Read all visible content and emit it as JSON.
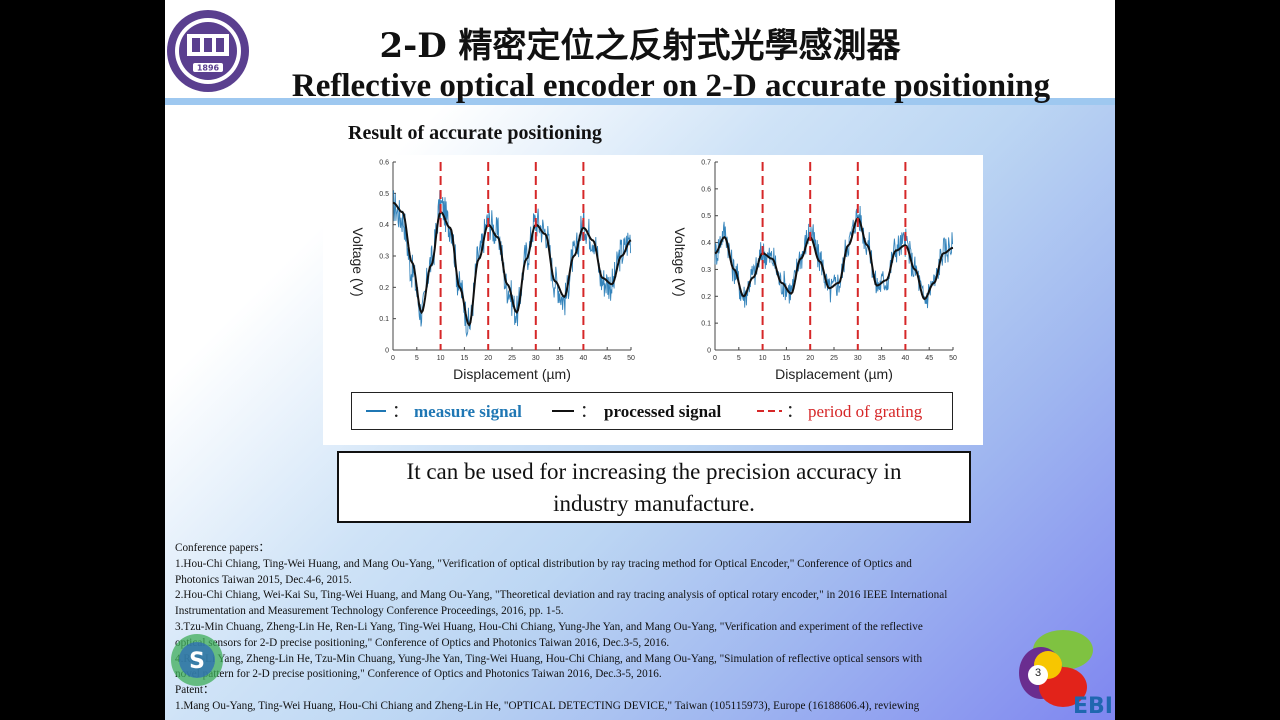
{
  "header": {
    "title_zh": "2-D 精密定位之反射式光學感測器",
    "title_en": "Reflective optical encoder on 2-D accurate positioning",
    "logo_icon": "university-seal-icon",
    "logo_text": "1896"
  },
  "section_title": "Result of accurate positioning",
  "charts": {
    "xlabel": "Displacement (µm)",
    "ylabel": "Voltage (V)"
  },
  "chart_data": [
    {
      "type": "line",
      "xlabel": "Displacement (µm)",
      "ylabel": "Voltage (V)",
      "xlim": [
        0,
        50
      ],
      "ylim": [
        0,
        0.6
      ],
      "xticks": [
        0,
        5,
        10,
        15,
        20,
        25,
        30,
        35,
        40,
        45,
        50
      ],
      "yticks": [
        0,
        0.1,
        0.2,
        0.3,
        0.4,
        0.5,
        0.6
      ],
      "grating_period_lines": [
        10,
        20,
        30,
        40
      ],
      "series": [
        {
          "name": "measure signal",
          "color": "#1f77b4",
          "x": [
            0,
            2,
            4,
            6,
            8,
            10,
            12,
            14,
            16,
            18,
            20,
            22,
            24,
            26,
            28,
            30,
            32,
            34,
            36,
            38,
            40,
            42,
            44,
            46,
            48,
            50
          ],
          "values": [
            0.46,
            0.42,
            0.25,
            0.12,
            0.28,
            0.46,
            0.4,
            0.2,
            0.08,
            0.3,
            0.41,
            0.37,
            0.2,
            0.12,
            0.3,
            0.41,
            0.38,
            0.22,
            0.16,
            0.3,
            0.4,
            0.36,
            0.22,
            0.21,
            0.31,
            0.36
          ]
        },
        {
          "name": "processed signal",
          "color": "#111111",
          "x": [
            0,
            2,
            4,
            6,
            8,
            10,
            12,
            14,
            16,
            18,
            20,
            22,
            24,
            26,
            28,
            30,
            32,
            34,
            36,
            38,
            40,
            42,
            44,
            46,
            48,
            50
          ],
          "values": [
            0.47,
            0.44,
            0.28,
            0.12,
            0.27,
            0.44,
            0.39,
            0.2,
            0.08,
            0.29,
            0.4,
            0.36,
            0.21,
            0.12,
            0.29,
            0.4,
            0.37,
            0.22,
            0.17,
            0.3,
            0.39,
            0.35,
            0.23,
            0.21,
            0.3,
            0.35
          ]
        }
      ]
    },
    {
      "type": "line",
      "xlabel": "Displacement (µm)",
      "ylabel": "Voltage (V)",
      "xlim": [
        0,
        50
      ],
      "ylim": [
        0,
        0.7
      ],
      "xticks": [
        0,
        5,
        10,
        15,
        20,
        25,
        30,
        35,
        40,
        45,
        50
      ],
      "yticks": [
        0,
        0.1,
        0.2,
        0.3,
        0.4,
        0.5,
        0.6,
        0.7
      ],
      "grating_period_lines": [
        10,
        20,
        30,
        40
      ],
      "series": [
        {
          "name": "measure signal",
          "color": "#1f77b4",
          "x": [
            0,
            2,
            4,
            6,
            8,
            10,
            12,
            14,
            16,
            18,
            20,
            22,
            24,
            26,
            28,
            30,
            32,
            34,
            36,
            38,
            40,
            42,
            44,
            46,
            48,
            50
          ],
          "values": [
            0.36,
            0.44,
            0.3,
            0.2,
            0.28,
            0.36,
            0.34,
            0.25,
            0.22,
            0.35,
            0.44,
            0.34,
            0.22,
            0.25,
            0.4,
            0.5,
            0.4,
            0.24,
            0.26,
            0.38,
            0.4,
            0.3,
            0.19,
            0.25,
            0.37,
            0.39
          ]
        },
        {
          "name": "processed signal",
          "color": "#111111",
          "x": [
            0,
            2,
            4,
            6,
            8,
            10,
            12,
            14,
            16,
            18,
            20,
            22,
            24,
            26,
            28,
            30,
            32,
            34,
            36,
            38,
            40,
            42,
            44,
            46,
            48,
            50
          ],
          "values": [
            0.36,
            0.42,
            0.3,
            0.2,
            0.27,
            0.36,
            0.34,
            0.25,
            0.21,
            0.34,
            0.42,
            0.33,
            0.23,
            0.25,
            0.39,
            0.49,
            0.39,
            0.24,
            0.26,
            0.37,
            0.39,
            0.3,
            0.19,
            0.25,
            0.36,
            0.38
          ]
        }
      ]
    }
  ],
  "legend": {
    "measure_label": "measure signal",
    "processed_label": "processed signal",
    "period_label": "period of grating",
    "separator": "：",
    "colors": {
      "measure": "#1f77b4",
      "processed": "#111111",
      "period": "#d62728"
    }
  },
  "note": {
    "line1": "It can be used for increasing the precision accuracy in",
    "line2": "industry manufacture."
  },
  "references": {
    "heading": "Conference papers：",
    "lines": [
      "1.Hou-Chi Chiang, Ting-Wei Huang, and Mang Ou-Yang, \"Verification of optical distribution by ray tracing method for Optical Encoder,\" Conference of Optics and",
      "Photonics Taiwan 2015, Dec.4-6, 2015.",
      "2.Hou-Chi Chiang, Wei-Kai Su, Ting-Wei Huang, and Mang Ou-Yang, \"Theoretical deviation and ray tracing analysis of optical rotary encoder,\" in 2016 IEEE International",
      "Instrumentation and Measurement Technology Conference Proceedings, 2016, pp. 1-5.",
      "3.Tzu-Min Chuang, Zheng-Lin He, Ren-Li Yang, Ting-Wei Huang, Hou-Chi Chiang, Yung-Jhe Yan, and Mang Ou-Yang, \"Verification and experiment of the reflective",
      "optical sensors for 2-D precise positioning,\" Conference of Optics and Photonics Taiwan 2016, Dec.3-5, 2016.",
      "4.Ren-Li Yang, Zheng-Lin He, Tzu-Min Chuang, Yung-Jhe Yan, Ting-Wei Huang, Hou-Chi Chiang, and Mang Ou-Yang, \"Simulation of reflective optical sensors with",
      "novel pattern for 2-D precise positioning,\" Conference of Optics and Photonics Taiwan 2016, Dec.3-5, 2016."
    ],
    "patent_heading": "Patent：",
    "patent_line": "1.Mang Ou-Yang, Ting-Wei Huang, Hou-Chi Chiang and Zheng-Lin He, \"OPTICAL DETECTING DEVICE,\" Taiwan (105115973), Europe (16188606.4), reviewing"
  },
  "footer": {
    "page_number": "3",
    "ebil_text": "EBIL",
    "badge_text": "S"
  }
}
